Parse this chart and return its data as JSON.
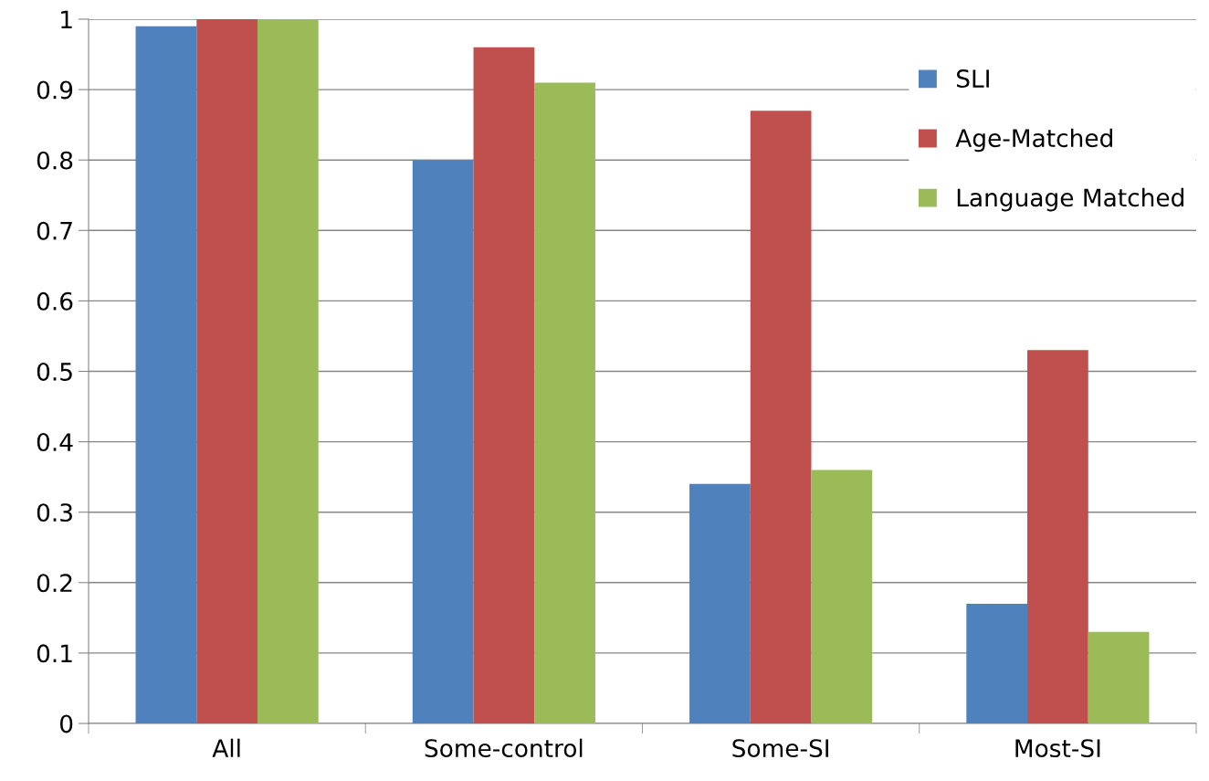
{
  "chart_data": {
    "type": "bar",
    "categories": [
      "All",
      "Some-control",
      "Some-SI",
      "Most-SI"
    ],
    "series": [
      {
        "name": "SLI",
        "color": "#4f81bd",
        "values": [
          0.99,
          0.8,
          0.34,
          0.17
        ]
      },
      {
        "name": "Age-Matched",
        "color": "#c0504d",
        "values": [
          1,
          0.96,
          0.87,
          0.53
        ]
      },
      {
        "name": "Language Matched",
        "color": "#9bbb59",
        "values": [
          1,
          0.91,
          0.36,
          0.13
        ]
      }
    ],
    "ylim": [
      0,
      1
    ],
    "yticks": [
      0,
      0.1,
      0.2,
      0.3,
      0.4,
      0.5,
      0.6,
      0.7,
      0.8,
      0.9,
      1
    ],
    "grid": "y",
    "legend": "top right"
  }
}
